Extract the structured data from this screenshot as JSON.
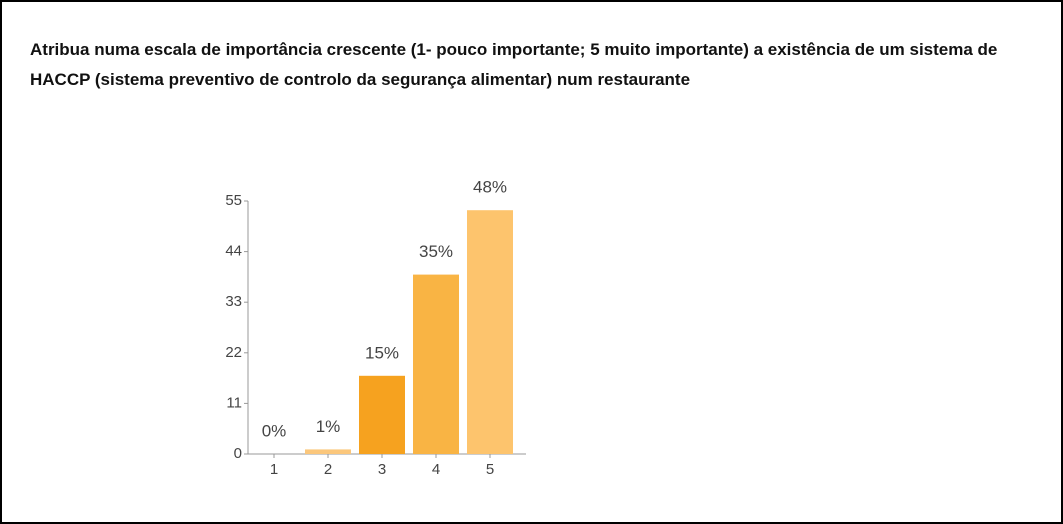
{
  "chart_data": {
    "type": "bar",
    "title": "Atribua numa escala de importância crescente (1- pouco importante; 5 muito importante) a existência de um sistema de HACCP (sistema preventivo de controlo da segurança alimentar) num restaurante",
    "categories": [
      "1",
      "2",
      "3",
      "4",
      "5"
    ],
    "values": [
      0,
      1,
      17,
      39,
      53
    ],
    "value_labels": [
      "0%",
      "1%",
      "15%",
      "35%",
      "48%"
    ],
    "colors": [
      "#fbc77c",
      "#fbc77c",
      "#f6a21f",
      "#f9b444",
      "#fdc46d"
    ],
    "ylim": [
      0,
      55
    ],
    "yticks": [
      0,
      11,
      22,
      33,
      44,
      55
    ]
  }
}
